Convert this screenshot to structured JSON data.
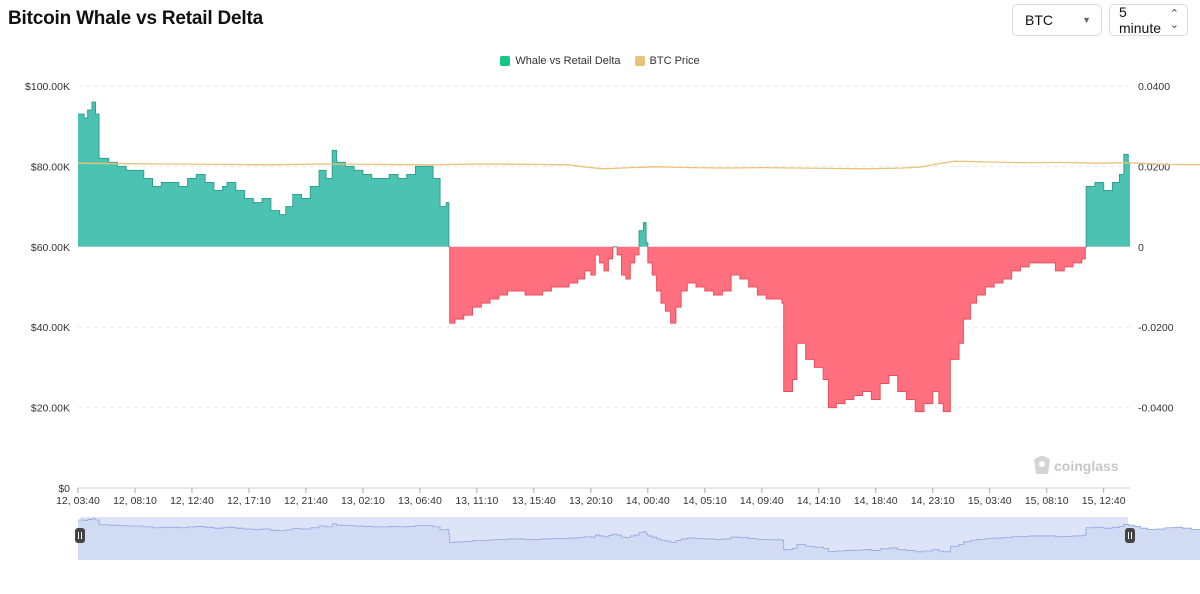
{
  "title": "Bitcoin Whale vs Retail Delta",
  "controls": {
    "asset_value": "BTC",
    "interval_value": "5 minute"
  },
  "icons": {
    "asset_caret": "chevron-down-icon",
    "interval_caret": "updown-arrows-icon",
    "watermark": "coinglass-logo-icon",
    "slider_handles": "drag-handle-icon"
  },
  "colors": {
    "positive": "#4cc3b2",
    "positive_line": "#2fa08f",
    "negative": "#ff6f7e",
    "negative_line": "#e8505f",
    "price": "#e9c27a",
    "navigator_fill": "#dde4f7",
    "navigator_line": "#8fa6de",
    "legend_delta": "#13c786",
    "legend_price": "#e9c27a"
  },
  "watermark": "coinglass",
  "chart_data": {
    "type": "area",
    "legend": [
      {
        "name": "Whale vs Retail Delta"
      },
      {
        "name": "BTC Price"
      }
    ],
    "x_tick_labels": [
      "12, 03:40",
      "12, 08:10",
      "12, 12:40",
      "12, 17:10",
      "12, 21:40",
      "13, 02:10",
      "13, 06:40",
      "13, 11:10",
      "13, 15:40",
      "13, 20:10",
      "14, 00:40",
      "14, 05:10",
      "14, 09:40",
      "14, 14:10",
      "14, 18:40",
      "14, 23:10",
      "15, 03:40",
      "15, 08:10",
      "15, 12:40"
    ],
    "left_axis": {
      "ticks": [
        "$100.00K",
        "$80.00K",
        "$60.00K",
        "$40.00K",
        "$20.00K",
        "$0"
      ],
      "range": [
        0,
        100000
      ]
    },
    "right_axis": {
      "ticks": [
        "0.0400",
        "0.0200",
        "0",
        "-0.0200",
        "-0.0400"
      ],
      "range": [
        -0.06,
        0.04
      ]
    },
    "x_index_range": [
      0,
      120
    ],
    "series": [
      {
        "name": "Whale vs Retail Delta",
        "axis": "right",
        "points": [
          [
            0,
            0.033
          ],
          [
            0.7,
            0.032
          ],
          [
            1.1,
            0.034
          ],
          [
            1.6,
            0.036
          ],
          [
            2.0,
            0.033
          ],
          [
            2.4,
            0.022
          ],
          [
            3.5,
            0.021
          ],
          [
            4.5,
            0.02
          ],
          [
            5.5,
            0.019
          ],
          [
            6.5,
            0.019
          ],
          [
            7.5,
            0.017
          ],
          [
            8.5,
            0.015
          ],
          [
            9.5,
            0.016
          ],
          [
            10.5,
            0.016
          ],
          [
            11.5,
            0.015
          ],
          [
            12.5,
            0.017
          ],
          [
            13.5,
            0.018
          ],
          [
            14.5,
            0.016
          ],
          [
            15.5,
            0.014
          ],
          [
            16.5,
            0.015
          ],
          [
            17.0,
            0.016
          ],
          [
            18.0,
            0.014
          ],
          [
            19.0,
            0.012
          ],
          [
            20.0,
            0.011
          ],
          [
            21.0,
            0.012
          ],
          [
            22.0,
            0.009
          ],
          [
            23.0,
            0.008
          ],
          [
            23.7,
            0.01
          ],
          [
            24.5,
            0.013
          ],
          [
            25.5,
            0.012
          ],
          [
            26.5,
            0.015
          ],
          [
            27.5,
            0.019
          ],
          [
            28.3,
            0.017
          ],
          [
            29.0,
            0.024
          ],
          [
            29.5,
            0.021
          ],
          [
            30.5,
            0.02
          ],
          [
            31.5,
            0.019
          ],
          [
            32.5,
            0.018
          ],
          [
            33.5,
            0.017
          ],
          [
            34.5,
            0.017
          ],
          [
            35.5,
            0.018
          ],
          [
            36.5,
            0.017
          ],
          [
            37.5,
            0.018
          ],
          [
            38.5,
            0.02
          ],
          [
            39.5,
            0.02
          ],
          [
            40.5,
            0.017
          ],
          [
            41.3,
            0.01
          ],
          [
            42.0,
            0.011
          ],
          [
            42.3,
            0.0
          ],
          [
            42.4,
            -0.019
          ],
          [
            43.0,
            -0.018
          ],
          [
            44.0,
            -0.017
          ],
          [
            45.0,
            -0.015
          ],
          [
            46.0,
            -0.014
          ],
          [
            47.0,
            -0.013
          ],
          [
            48.0,
            -0.012
          ],
          [
            49.0,
            -0.011
          ],
          [
            50.0,
            -0.011
          ],
          [
            51.0,
            -0.012
          ],
          [
            52.0,
            -0.012
          ],
          [
            53.0,
            -0.011
          ],
          [
            54.0,
            -0.01
          ],
          [
            55.0,
            -0.01
          ],
          [
            56.0,
            -0.009
          ],
          [
            57.0,
            -0.008
          ],
          [
            57.8,
            -0.006
          ],
          [
            58.5,
            -0.007
          ],
          [
            59.0,
            -0.002
          ],
          [
            59.5,
            -0.004
          ],
          [
            60.0,
            -0.006
          ],
          [
            60.5,
            -0.003
          ],
          [
            61.0,
            0.0
          ],
          [
            61.5,
            -0.002
          ],
          [
            62.0,
            -0.007
          ],
          [
            62.5,
            -0.008
          ],
          [
            63.0,
            -0.004
          ],
          [
            63.5,
            -0.002
          ],
          [
            64.0,
            0.004
          ],
          [
            64.5,
            0.006
          ],
          [
            64.8,
            0.001
          ],
          [
            65.0,
            -0.004
          ],
          [
            65.5,
            -0.007
          ],
          [
            66.0,
            -0.011
          ],
          [
            66.5,
            -0.014
          ],
          [
            67.0,
            -0.016
          ],
          [
            67.6,
            -0.019
          ],
          [
            68.2,
            -0.015
          ],
          [
            68.8,
            -0.011
          ],
          [
            69.5,
            -0.009
          ],
          [
            70.5,
            -0.01
          ],
          [
            71.5,
            -0.011
          ],
          [
            72.5,
            -0.012
          ],
          [
            73.5,
            -0.011
          ],
          [
            74.5,
            -0.007
          ],
          [
            75.5,
            -0.008
          ],
          [
            76.5,
            -0.01
          ],
          [
            77.5,
            -0.012
          ],
          [
            78.5,
            -0.013
          ],
          [
            79.5,
            -0.013
          ],
          [
            80.3,
            -0.014
          ],
          [
            80.5,
            -0.036
          ],
          [
            81.5,
            -0.033
          ],
          [
            82.0,
            -0.024
          ],
          [
            83.0,
            -0.028
          ],
          [
            84.0,
            -0.03
          ],
          [
            85.0,
            -0.033
          ],
          [
            85.6,
            -0.04
          ],
          [
            86.5,
            -0.039
          ],
          [
            87.5,
            -0.038
          ],
          [
            88.5,
            -0.037
          ],
          [
            89.5,
            -0.036
          ],
          [
            90.5,
            -0.038
          ],
          [
            91.5,
            -0.034
          ],
          [
            92.5,
            -0.032
          ],
          [
            93.5,
            -0.036
          ],
          [
            94.5,
            -0.038
          ],
          [
            95.5,
            -0.041
          ],
          [
            96.5,
            -0.039
          ],
          [
            97.5,
            -0.036
          ],
          [
            98.2,
            -0.039
          ],
          [
            98.7,
            -0.041
          ],
          [
            99.5,
            -0.028
          ],
          [
            100.5,
            -0.024
          ],
          [
            101.0,
            -0.018
          ],
          [
            101.8,
            -0.014
          ],
          [
            102.5,
            -0.012
          ],
          [
            103.5,
            -0.01
          ],
          [
            104.5,
            -0.009
          ],
          [
            105.5,
            -0.008
          ],
          [
            106.5,
            -0.006
          ],
          [
            107.5,
            -0.005
          ],
          [
            108.5,
            -0.004
          ],
          [
            109.5,
            -0.004
          ],
          [
            110.5,
            -0.004
          ],
          [
            111.5,
            -0.006
          ],
          [
            112.5,
            -0.005
          ],
          [
            113.5,
            -0.004
          ],
          [
            114.5,
            -0.003
          ],
          [
            114.9,
            0.0
          ],
          [
            115.0,
            0.015
          ],
          [
            116.0,
            0.016
          ],
          [
            117.0,
            0.014
          ],
          [
            118.0,
            0.016
          ],
          [
            118.8,
            0.018
          ],
          [
            119.3,
            0.023
          ],
          [
            119.8,
            0.021
          ],
          [
            120.5,
            0.018
          ],
          [
            121.2,
            0.014
          ],
          [
            122.0,
            0.011
          ],
          [
            123.0,
            0.012
          ],
          [
            124.0,
            0.015
          ],
          [
            125.0,
            0.016
          ],
          [
            126.0,
            0.014
          ],
          [
            127.0,
            0.011
          ],
          [
            128.0,
            0.011
          ]
        ]
      },
      {
        "name": "BTC Price",
        "axis": "left",
        "points": [
          [
            0,
            80800
          ],
          [
            4,
            80700
          ],
          [
            10,
            80600
          ],
          [
            16,
            80500
          ],
          [
            22,
            80400
          ],
          [
            28,
            80600
          ],
          [
            34,
            80500
          ],
          [
            40,
            80400
          ],
          [
            46,
            80600
          ],
          [
            52,
            80500
          ],
          [
            56,
            80400
          ],
          [
            58,
            79800
          ],
          [
            60,
            79400
          ],
          [
            63,
            79700
          ],
          [
            66,
            79900
          ],
          [
            70,
            79700
          ],
          [
            74,
            79600
          ],
          [
            78,
            79700
          ],
          [
            82,
            79600
          ],
          [
            86,
            79500
          ],
          [
            90,
            79400
          ],
          [
            94,
            79600
          ],
          [
            96,
            79800
          ],
          [
            98,
            80600
          ],
          [
            100,
            81300
          ],
          [
            104,
            81100
          ],
          [
            108,
            80900
          ],
          [
            112,
            81000
          ],
          [
            116,
            80800
          ],
          [
            120,
            80900
          ],
          [
            124,
            80500
          ],
          [
            128,
            80400
          ]
        ]
      }
    ],
    "grid": "horizontal dashed",
    "legend_position": "top-center",
    "navigator": true
  }
}
